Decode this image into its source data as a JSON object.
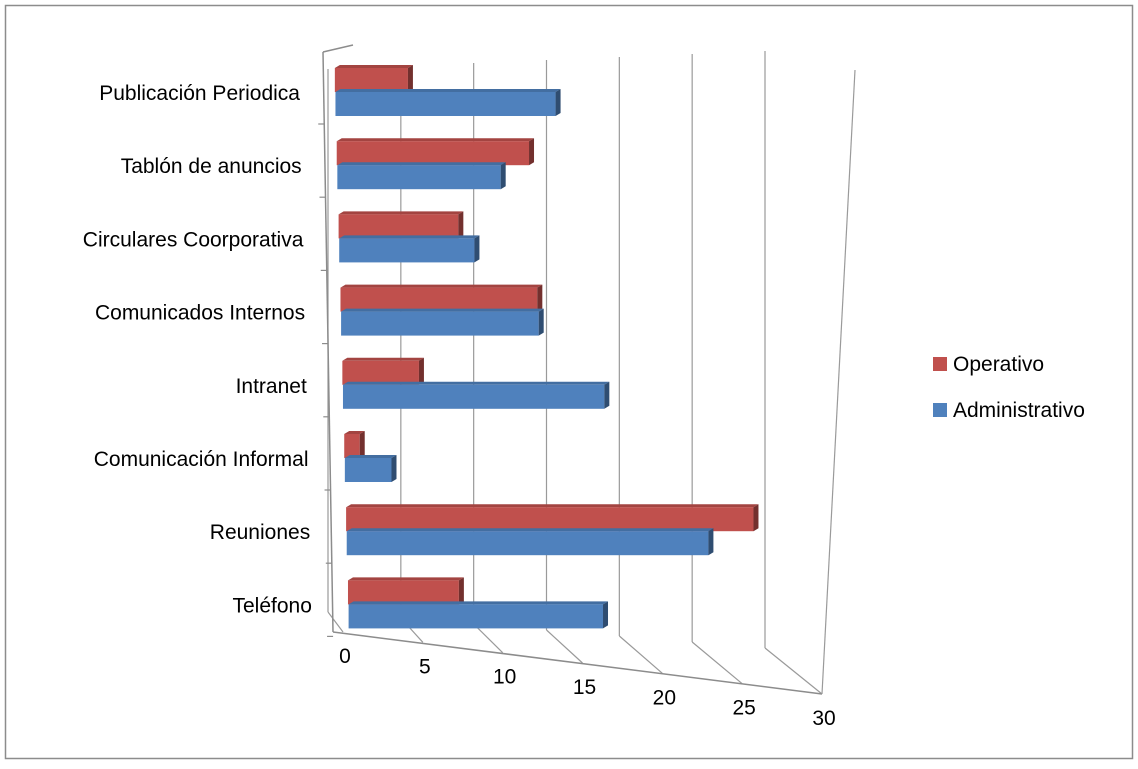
{
  "chart_data": {
    "type": "bar",
    "orientation": "horizontal",
    "style": "3d-perspective",
    "categories": [
      "Publicación Periodica",
      "Tablón de anuncios",
      "Circulares Coorporativa",
      "Comunicados Internos",
      "Intranet",
      "Comunicación Informal",
      "Reuniones",
      "Teléfono"
    ],
    "series": [
      {
        "name": "Operativo",
        "color": "#c0504d",
        "values": [
          5,
          13,
          8,
          13,
          5,
          1,
          26,
          7
        ]
      },
      {
        "name": "Administrativo",
        "color": "#4f81bd",
        "values": [
          15,
          11,
          9,
          13,
          17,
          3,
          23,
          16
        ]
      }
    ],
    "xticks": [
      "0",
      "5",
      "10",
      "15",
      "20",
      "25",
      "30"
    ],
    "xlim": [
      0,
      30
    ],
    "grid": true,
    "legend_position": "right"
  }
}
